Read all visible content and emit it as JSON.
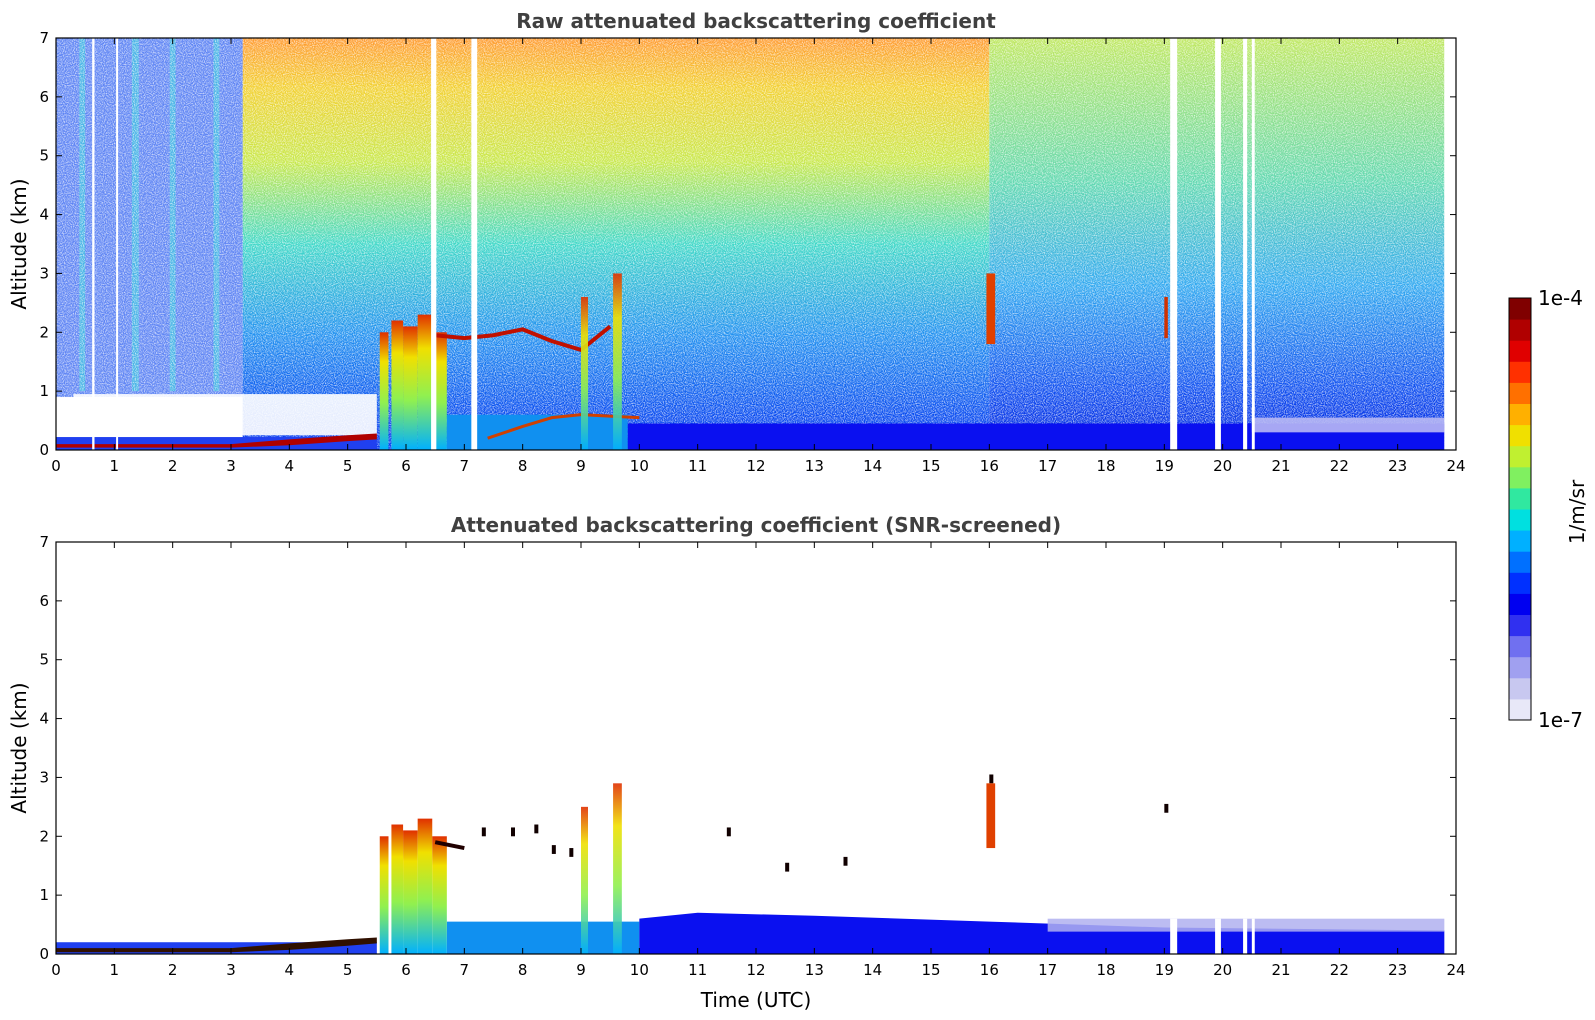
{
  "chart_data": [
    {
      "type": "heatmap",
      "title": "Raw attenuated backscattering coefficient",
      "xlabel": "",
      "ylabel": "Altitude (km)",
      "xlim": [
        0,
        24
      ],
      "ylim": [
        0,
        7
      ],
      "xticks": [
        "0",
        "1",
        "2",
        "3",
        "4",
        "5",
        "6",
        "7",
        "8",
        "9",
        "10",
        "11",
        "12",
        "13",
        "14",
        "15",
        "16",
        "17",
        "18",
        "19",
        "20",
        "21",
        "22",
        "23",
        "24"
      ],
      "yticks": [
        "0",
        "1",
        "2",
        "3",
        "4",
        "5",
        "6",
        "7"
      ],
      "data_end_hour": 23.8,
      "gaps_hours": [
        [
          0.62,
          0.66
        ],
        [
          1.03,
          1.06
        ],
        [
          6.43,
          6.52
        ],
        [
          7.12,
          7.22
        ],
        [
          19.1,
          19.22
        ],
        [
          19.87,
          19.97
        ],
        [
          20.35,
          20.42
        ],
        [
          20.5,
          20.55
        ]
      ],
      "features": [
        {
          "name": "aerosol layer",
          "x": [
            0,
            5.5
          ],
          "y": [
            0,
            0.3
          ]
        },
        {
          "name": "convective columns",
          "x": [
            5.5,
            6.7
          ],
          "y": [
            0,
            2.6
          ]
        },
        {
          "name": "cloud layer",
          "x": [
            6.5,
            9.8
          ],
          "y": [
            1.5,
            2.1
          ]
        },
        {
          "name": "column",
          "x": [
            9.0,
            9.1
          ],
          "y": [
            0,
            2.5
          ]
        },
        {
          "name": "column",
          "x": [
            9.5,
            9.7
          ],
          "y": [
            0,
            3.0
          ]
        },
        {
          "name": "elevated cloud",
          "x": [
            15.9,
            16.1
          ],
          "y": [
            1.7,
            3.0
          ]
        },
        {
          "name": "elevated cloud",
          "x": [
            19.0,
            19.1
          ],
          "y": [
            1.9,
            2.6
          ]
        },
        {
          "name": "boundary layer",
          "x": [
            9.8,
            23.8
          ],
          "y": [
            0,
            0.5
          ]
        }
      ]
    },
    {
      "type": "heatmap",
      "title": "Attenuated backscattering coefficient (SNR-screened)",
      "xlabel": "Time (UTC)",
      "ylabel": "Altitude (km)",
      "xlim": [
        0,
        24
      ],
      "ylim": [
        0,
        7
      ],
      "xticks": [
        "0",
        "1",
        "2",
        "3",
        "4",
        "5",
        "6",
        "7",
        "8",
        "9",
        "10",
        "11",
        "12",
        "13",
        "14",
        "15",
        "16",
        "17",
        "18",
        "19",
        "20",
        "21",
        "22",
        "23",
        "24"
      ],
      "yticks": [
        "0",
        "1",
        "2",
        "3",
        "4",
        "5",
        "6",
        "7"
      ],
      "data_end_hour": 23.8,
      "features": [
        {
          "name": "aerosol layer",
          "x": [
            0,
            5.5
          ],
          "y": [
            0,
            0.3
          ]
        },
        {
          "name": "convective columns",
          "x": [
            5.5,
            6.7
          ],
          "y": [
            0,
            2.6
          ]
        },
        {
          "name": "cloud layer",
          "x": [
            6.5,
            9.8
          ],
          "y": [
            1.5,
            2.1
          ]
        },
        {
          "name": "boundary layer",
          "x": [
            6.7,
            23.8
          ],
          "y": [
            0,
            0.6
          ]
        }
      ]
    }
  ],
  "colorbar": {
    "label": "1/m/sr",
    "max_label": "1e-4",
    "min_label": "1e-7",
    "colormap": [
      "#e8e8f8",
      "#c8c8f0",
      "#a0a0f0",
      "#7070f0",
      "#3030f0",
      "#0000f0",
      "#0030ff",
      "#0070ff",
      "#00b0ff",
      "#00e0e0",
      "#30e8a0",
      "#80f060",
      "#c0f030",
      "#f0e000",
      "#ffb000",
      "#ff7000",
      "#ff3000",
      "#e00000",
      "#b00000",
      "#800000"
    ]
  }
}
